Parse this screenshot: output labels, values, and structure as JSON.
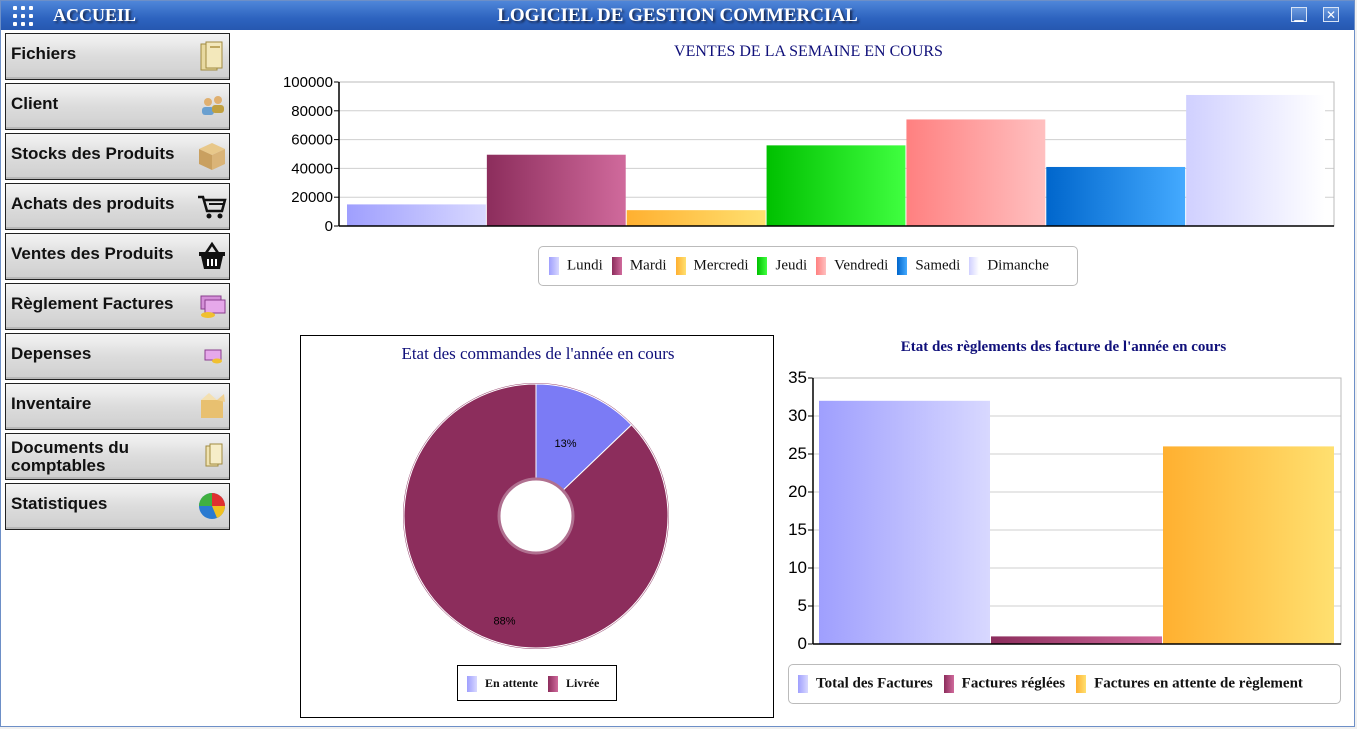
{
  "window": {
    "home_label": "ACCUEIL",
    "title": "LOGICIEL DE GESTION COMMERCIAL",
    "minimize_glyph": "▁",
    "close_glyph": "✕"
  },
  "sidebar": {
    "items": [
      {
        "label": "Fichiers",
        "icon": "folder-icon"
      },
      {
        "label": "Client",
        "icon": "users-icon"
      },
      {
        "label": "Stocks des Produits",
        "icon": "box-icon"
      },
      {
        "label": "Achats des produits",
        "icon": "cart-icon"
      },
      {
        "label": "Ventes des Produits",
        "icon": "basket-icon"
      },
      {
        "label": "Règlement Factures",
        "icon": "money-icon"
      },
      {
        "label": "Depenses",
        "icon": "cash-icon"
      },
      {
        "label": "Inventaire",
        "icon": "open-box-icon"
      },
      {
        "label": "Documents du comptables",
        "icon": "documents-icon"
      },
      {
        "label": "Statistiques",
        "icon": "pie-chart-icon"
      }
    ]
  },
  "chart_data": [
    {
      "type": "bar",
      "title": "VENTES DE LA SEMAINE EN COURS",
      "categories": [
        "Lundi",
        "Mardi",
        "Mercredi",
        "Jeudi",
        "Vendredi",
        "Samedi",
        "Dimanche"
      ],
      "values": [
        15000,
        49500,
        11000,
        56000,
        74000,
        41000,
        91000
      ],
      "colors": [
        [
          "#9f9ffe",
          "#d8d8ff"
        ],
        [
          "#8c2d5c",
          "#d06a9c"
        ],
        [
          "#ffb030",
          "#ffe070"
        ],
        [
          "#00c000",
          "#40ff40"
        ],
        [
          "#ff8080",
          "#ffc0c0"
        ],
        [
          "#0066cc",
          "#44aaff"
        ],
        [
          "#d0d0ff",
          "#ffffff"
        ]
      ],
      "ylim": [
        0,
        100000
      ],
      "yticks": [
        "0",
        "20000",
        "40000",
        "60000",
        "80000",
        "100000"
      ],
      "xlabel": "",
      "ylabel": "",
      "legend": "bottom"
    },
    {
      "type": "pie",
      "title": "Etat des commandes de l'année en cours",
      "categories": [
        "En attente",
        "Livrée"
      ],
      "values": [
        13,
        88
      ],
      "labels": [
        "13%",
        "88%"
      ],
      "colors": [
        "#7b7bf5",
        "#8c2d5c"
      ],
      "legend_colors": [
        [
          "#9f9ffe",
          "#d8d8ff"
        ],
        [
          "#8c2d5c",
          "#d06a9c"
        ]
      ],
      "legend": "bottom"
    },
    {
      "type": "bar",
      "title": "Etat des règlements des facture de l'année en cours",
      "categories": [
        "Total des Factures",
        "Factures réglées",
        "Factures en attente de règlement"
      ],
      "values": [
        32,
        1,
        26
      ],
      "colors": [
        [
          "#9f9ffe",
          "#d8d8ff"
        ],
        [
          "#8c2d5c",
          "#d06a9c"
        ],
        [
          "#ffb030",
          "#ffe070"
        ]
      ],
      "ylim": [
        0,
        35
      ],
      "yticks": [
        "0",
        "5",
        "10",
        "15",
        "20",
        "25",
        "30",
        "35"
      ],
      "xlabel": "",
      "ylabel": "",
      "legend": "bottom"
    }
  ]
}
